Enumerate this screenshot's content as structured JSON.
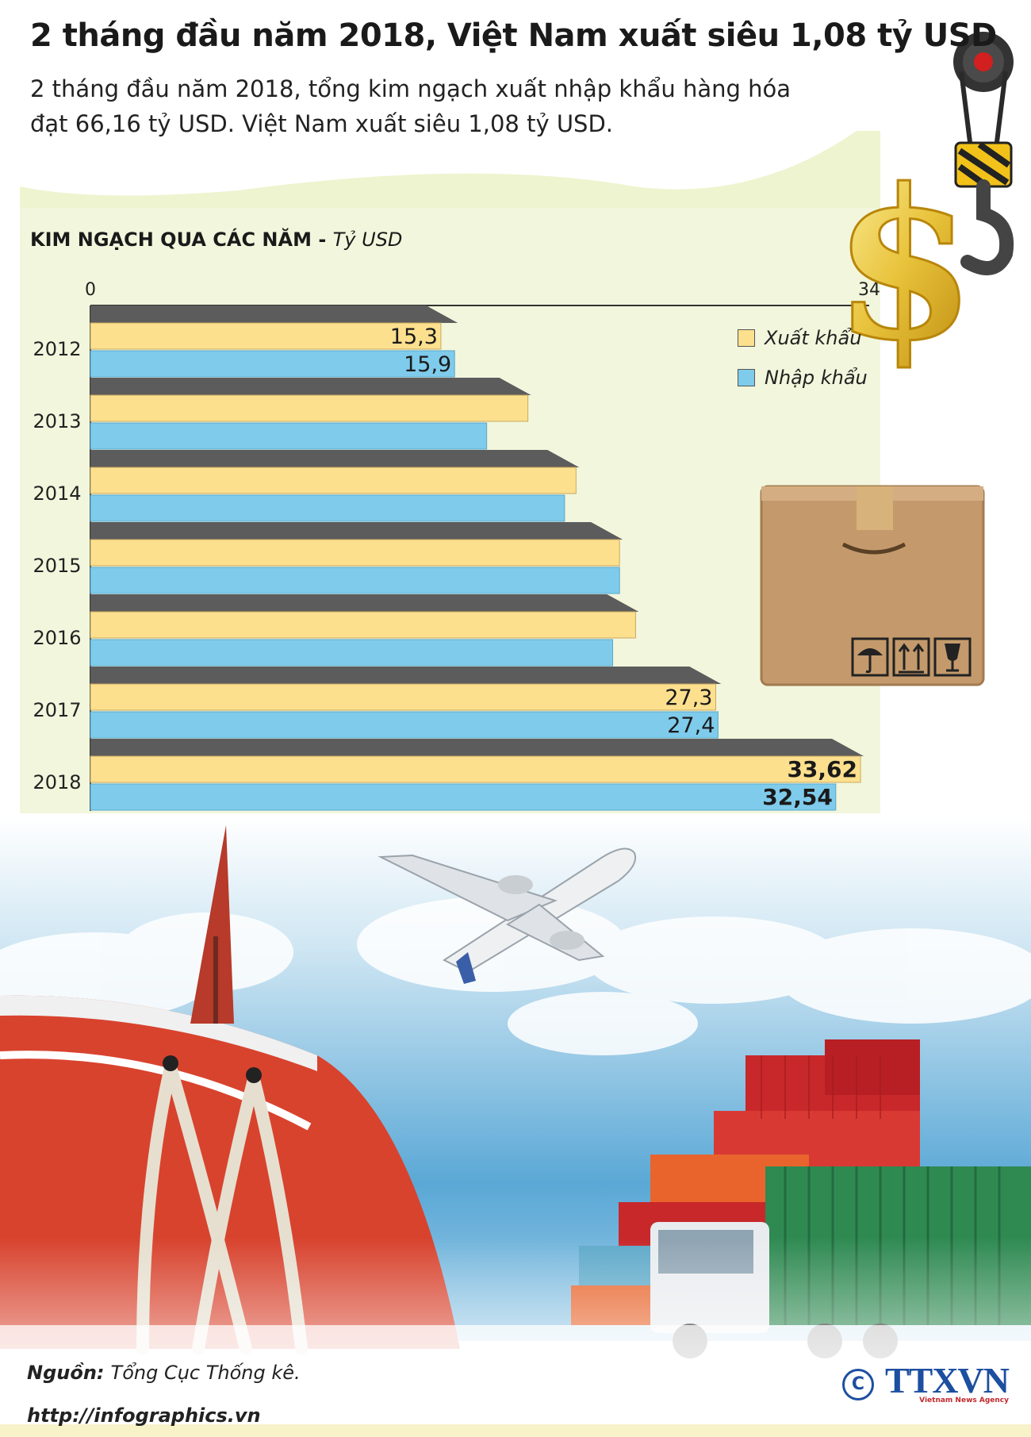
{
  "header": {
    "title": "2 tháng đầu năm 2018, Việt Nam xuất siêu 1,08 tỷ USD",
    "subtitle": "2 tháng đầu năm 2018, tổng kim ngạch xuất nhập khẩu hàng hóa đạt 66,16 tỷ USD. Việt Nam xuất siêu 1,08 tỷ USD."
  },
  "chart_label": {
    "main": "KIM NGẠCH QUA CÁC NĂM - ",
    "unit": "Tỷ USD"
  },
  "chart_data": {
    "type": "bar",
    "orientation": "horizontal",
    "title": "KIM NGẠCH QUA CÁC NĂM",
    "xlabel": "Tỷ USD",
    "xlim": [
      0,
      34
    ],
    "axis_ticks": [
      "0",
      "34"
    ],
    "categories": [
      "2012",
      "2013",
      "2014",
      "2015",
      "2016",
      "2017",
      "2018"
    ],
    "series": [
      {
        "name": "Xuất khẩu",
        "color": "#fce08e",
        "values": [
          15.3,
          19.1,
          21.2,
          23.1,
          23.8,
          27.3,
          33.62
        ],
        "labels": [
          "15,3",
          "",
          "",
          "",
          "",
          "27,3",
          "33,62"
        ]
      },
      {
        "name": "Nhập khẩu",
        "color": "#7fcbeb",
        "values": [
          15.9,
          17.3,
          20.7,
          23.1,
          22.8,
          27.4,
          32.54
        ],
        "labels": [
          "15,9",
          "",
          "",
          "",
          "",
          "27,4",
          "32,54"
        ]
      }
    ],
    "bold_labels_for": "2018",
    "legend": "top-right"
  },
  "colors": {
    "chart_bg": "#f2f6dc",
    "wave": "#e9f0c6",
    "export": "#fce08e",
    "import": "#7fcbeb",
    "separator": "#5c5c5c",
    "brand": "#1d4fa0"
  },
  "illustrations": [
    "crane-hook-dollar-icon",
    "cardboard-box-icon",
    "umbrella-icon",
    "this-way-up-icon",
    "fragile-glass-icon",
    "port-scene-image"
  ],
  "footer": {
    "source_label": "Nguồn:",
    "source_value": "Tổng Cục Thống kê.",
    "url": "http://infographics.vn",
    "copyright_symbol": "C",
    "logo_text": "TTXVN",
    "logo_sub": "Vietnam News Agency"
  }
}
